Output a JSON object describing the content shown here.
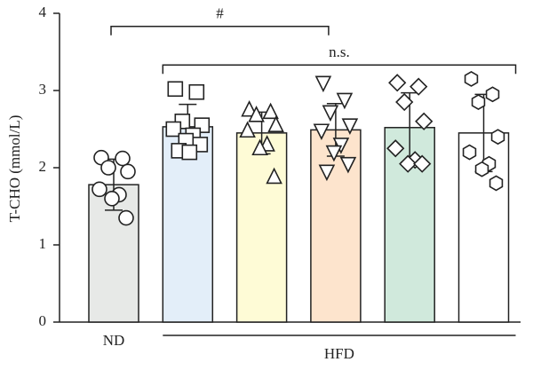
{
  "chart_data": {
    "type": "bar",
    "ylabel": "T-CHO (mmol/L)",
    "categories": [
      "ND",
      null,
      null,
      null,
      null,
      null
    ],
    "values": [
      1.78,
      2.53,
      2.45,
      2.49,
      2.52,
      2.45
    ],
    "errors": [
      0.33,
      0.29,
      0.27,
      0.34,
      0.45,
      0.5
    ],
    "colors": [
      "#e7e9e7",
      "#e3eef9",
      "#fefbd6",
      "#fde4cd",
      "#d0e9dc",
      "#ffffff"
    ],
    "markers": [
      "circle",
      "square",
      "triangle",
      "triangle-down",
      "diamond",
      "hexagon"
    ],
    "points": [
      [
        2.13,
        2.12,
        2.0,
        1.95,
        1.72,
        1.65,
        1.6,
        1.35
      ],
      [
        3.02,
        2.98,
        2.6,
        2.55,
        2.5,
        2.42,
        2.35,
        2.3,
        2.22,
        2.2
      ],
      [
        2.75,
        2.72,
        2.68,
        2.55,
        2.48,
        2.3,
        2.25,
        1.88
      ],
      [
        3.1,
        2.88,
        2.72,
        2.55,
        2.48,
        2.3,
        2.2,
        2.05,
        1.95
      ],
      [
        3.1,
        3.05,
        2.85,
        2.6,
        2.25,
        2.1,
        2.05,
        2.05
      ],
      [
        3.15,
        2.95,
        2.85,
        2.4,
        2.2,
        2.05,
        1.98,
        1.8
      ]
    ],
    "groups": [
      {
        "label": "HFD",
        "categories": [
          1,
          2,
          3,
          4,
          5
        ]
      }
    ],
    "annotations": [
      {
        "text": "#",
        "from": 0,
        "to": 3,
        "y": 3.83
      },
      {
        "text": "n.s.",
        "from": 1,
        "to": 5,
        "y": 3.33
      }
    ],
    "ylim": [
      0,
      4
    ],
    "yticks": [
      0,
      1,
      2,
      3,
      4
    ]
  }
}
